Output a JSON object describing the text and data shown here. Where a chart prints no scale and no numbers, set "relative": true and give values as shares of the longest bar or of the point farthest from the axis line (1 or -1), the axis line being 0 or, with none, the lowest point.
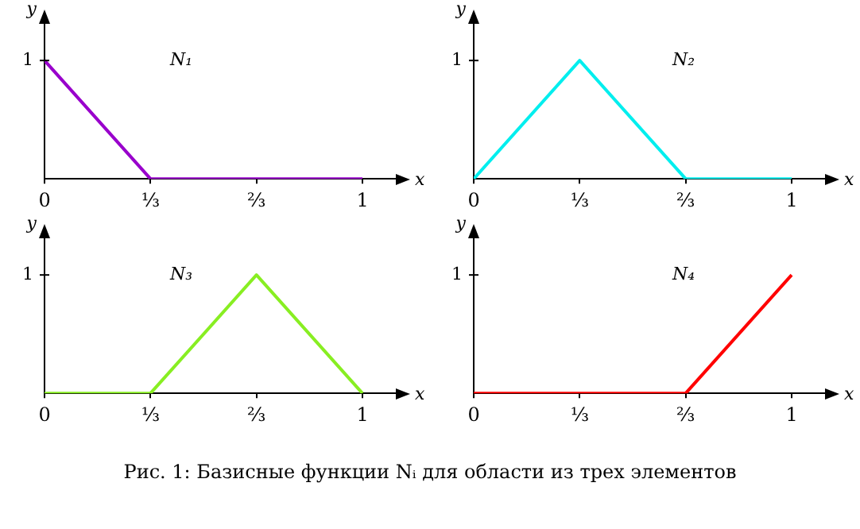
{
  "chart_data": [
    {
      "type": "line",
      "relative": true,
      "xlabel": "x",
      "ylabel": "y",
      "categories": [
        "0",
        "⅓",
        "⅔",
        "1"
      ],
      "marker": "none",
      "line_style": "solid",
      "series": [
        {
          "name": "N₁",
          "color": "#9900cc",
          "values": [
            1,
            0,
            0,
            0
          ]
        }
      ],
      "annotations": [
        "1"
      ]
    },
    {
      "type": "line",
      "relative": true,
      "xlabel": "x",
      "ylabel": "y",
      "categories": [
        "0",
        "⅓",
        "⅔",
        "1"
      ],
      "marker": "none",
      "line_style": "solid",
      "series": [
        {
          "name": "N₂",
          "color": "#00eeee",
          "values": [
            0,
            1,
            0,
            0
          ]
        }
      ],
      "annotations": [
        "1"
      ]
    },
    {
      "type": "line",
      "relative": true,
      "xlabel": "x",
      "ylabel": "y",
      "categories": [
        "0",
        "⅓",
        "⅔",
        "1"
      ],
      "marker": "none",
      "line_style": "solid",
      "series": [
        {
          "name": "N₃",
          "color": "#88ee22",
          "values": [
            0,
            0,
            1,
            0
          ]
        }
      ],
      "annotations": [
        "1"
      ]
    },
    {
      "type": "line",
      "relative": true,
      "xlabel": "x",
      "ylabel": "y",
      "categories": [
        "0",
        "⅓",
        "⅔",
        "1"
      ],
      "marker": "none",
      "line_style": "solid",
      "series": [
        {
          "name": "N₄",
          "color": "#ff0000",
          "values": [
            0,
            0,
            0,
            1
          ]
        }
      ],
      "annotations": [
        "1",
        "Рис. 1: Базисные функции Nᵢ для области из трех элементов"
      ]
    }
  ]
}
